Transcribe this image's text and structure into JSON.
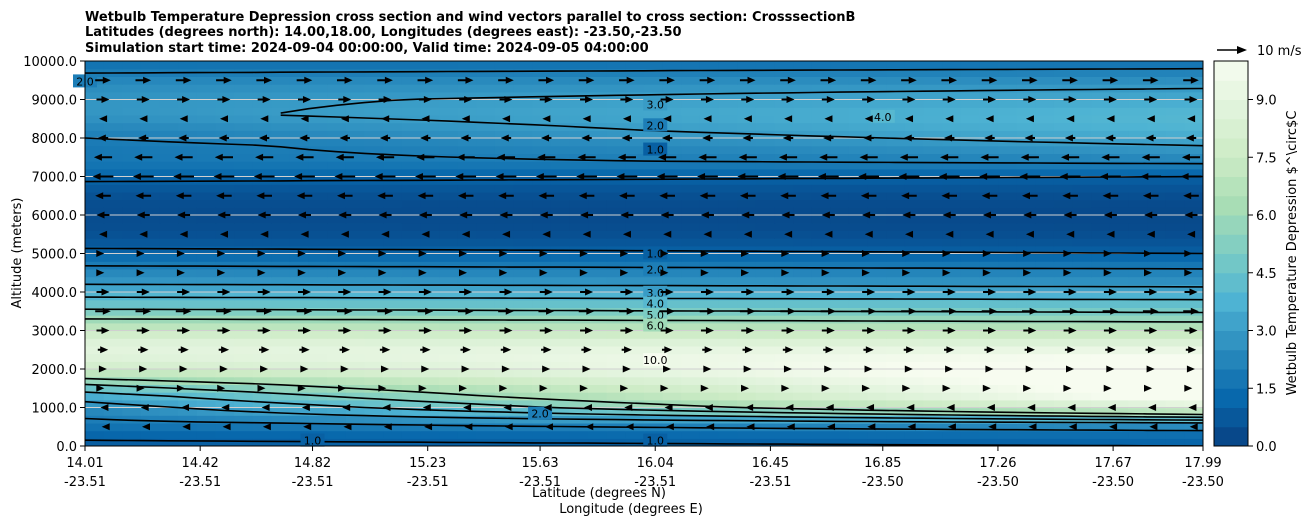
{
  "chart_data": {
    "type": "heatmap",
    "title_lines": [
      "Wetbulb Temperature Depression cross section and wind vectors parallel to cross section: CrosssectionB",
      "Latitudes (degrees north): 14.00,18.00, Longitudes (degrees east): -23.50,-23.50",
      "Simulation start time: 2024-09-04 00:00:00, Valid time: 2024-09-05 04:00:00"
    ],
    "xlabel_1": "Latitude (degrees N)",
    "xlabel_2": "Longitude (degrees E)",
    "ylabel": "Altitude (meters)",
    "x_ticks": [
      {
        "lat": "14.01",
        "lon": "-23.51"
      },
      {
        "lat": "14.42",
        "lon": "-23.51"
      },
      {
        "lat": "14.82",
        "lon": "-23.51"
      },
      {
        "lat": "15.23",
        "lon": "-23.51"
      },
      {
        "lat": "15.63",
        "lon": "-23.51"
      },
      {
        "lat": "16.04",
        "lon": "-23.51"
      },
      {
        "lat": "16.45",
        "lon": "-23.51"
      },
      {
        "lat": "16.85",
        "lon": "-23.50"
      },
      {
        "lat": "17.26",
        "lon": "-23.50"
      },
      {
        "lat": "17.67",
        "lon": "-23.50"
      },
      {
        "lat": "17.99",
        "lon": "-23.50"
      }
    ],
    "xlim": [
      14.01,
      17.99
    ],
    "ylim": [
      0,
      10000
    ],
    "y_ticks": [
      "0.0",
      "1000.0",
      "2000.0",
      "3000.0",
      "4000.0",
      "5000.0",
      "6000.0",
      "7000.0",
      "8000.0",
      "9000.0",
      "10000.0"
    ],
    "colorbar": {
      "label": "Wetbulb Temperature Depression $^\\circ$C",
      "range": [
        0,
        10
      ],
      "ticks": [
        "0.0",
        "1.5",
        "3.0",
        "4.5",
        "6.0",
        "7.5",
        "9.0"
      ],
      "colors": [
        "#084081",
        "#0868ac",
        "#2b8cbe",
        "#4eb3d3",
        "#7bccc4",
        "#a8ddb5",
        "#ccebc5",
        "#e0f3db",
        "#f7fcf0"
      ]
    },
    "wind_key": {
      "label": "10 m/s"
    },
    "profile": {
      "altitudes": [
        0,
        300,
        600,
        1000,
        1300,
        1600,
        1900,
        2200,
        2600,
        3000,
        3400,
        3800,
        4200,
        4600,
        5000,
        5400,
        5800,
        6200,
        6600,
        7000,
        7400,
        7800,
        8200,
        8600,
        9000,
        9400,
        9800,
        10000
      ],
      "values_south": [
        0.8,
        1.2,
        1.8,
        2.5,
        3.5,
        5.0,
        7.0,
        8.5,
        9.0,
        7.5,
        5.5,
        4.2,
        3.0,
        2.2,
        1.2,
        0.6,
        0.4,
        0.4,
        0.6,
        1.2,
        1.8,
        1.8,
        2.2,
        2.8,
        2.8,
        2.5,
        1.8,
        1.5
      ],
      "values_north": [
        1.0,
        1.5,
        3.0,
        8.5,
        10.5,
        11.0,
        11.0,
        10.5,
        9.0,
        7.0,
        5.2,
        4.0,
        2.8,
        2.0,
        1.0,
        0.5,
        0.3,
        0.3,
        0.5,
        1.0,
        2.2,
        3.0,
        3.8,
        4.0,
        3.5,
        2.8,
        2.0,
        1.5
      ]
    },
    "contour_levels": [
      {
        "label": "1.0",
        "x": 16.04,
        "y": 5000
      },
      {
        "label": "2.0",
        "x": 16.04,
        "y": 4580
      },
      {
        "label": "3.0",
        "x": 16.04,
        "y": 3980
      },
      {
        "label": "4.0",
        "x": 16.04,
        "y": 3700
      },
      {
        "label": "5.0",
        "x": 16.04,
        "y": 3400
      },
      {
        "label": "6.0",
        "x": 16.04,
        "y": 3130
      },
      {
        "label": "10.0",
        "x": 16.04,
        "y": 2230
      },
      {
        "label": "3.0",
        "x": 16.04,
        "y": 8870
      },
      {
        "label": "2.0",
        "x": 16.04,
        "y": 8330
      },
      {
        "label": "1.0",
        "x": 16.04,
        "y": 7700
      },
      {
        "label": "4.0",
        "x": 16.85,
        "y": 8550
      },
      {
        "label": "1.0",
        "x": 16.04,
        "y": 140
      },
      {
        "label": "2.0",
        "x": 15.63,
        "y": 840
      },
      {
        "label": "2.0",
        "x": 14.01,
        "y": 9470
      },
      {
        "label": "1.0",
        "x": 14.82,
        "y": 140
      }
    ],
    "wind_rows": [
      {
        "altitude": 9500,
        "u": 6
      },
      {
        "altitude": 9000,
        "u": 5
      },
      {
        "altitude": 8500,
        "u": -3
      },
      {
        "altitude": 8000,
        "u": -4
      },
      {
        "altitude": 7500,
        "u": -7
      },
      {
        "altitude": 7000,
        "u": -8
      },
      {
        "altitude": 6500,
        "u": -6
      },
      {
        "altitude": 6000,
        "u": -5
      },
      {
        "altitude": 5500,
        "u": -3
      },
      {
        "altitude": 5000,
        "u": 1
      },
      {
        "altitude": 4500,
        "u": 1
      },
      {
        "altitude": 4000,
        "u": 5
      },
      {
        "altitude": 3500,
        "u": 6
      },
      {
        "altitude": 3000,
        "u": 5
      },
      {
        "altitude": 2500,
        "u": 4
      },
      {
        "altitude": 2000,
        "u": 3
      },
      {
        "altitude": 1500,
        "u": 1
      },
      {
        "altitude": 1000,
        "u": -2
      },
      {
        "altitude": 500,
        "u": -1
      }
    ]
  }
}
